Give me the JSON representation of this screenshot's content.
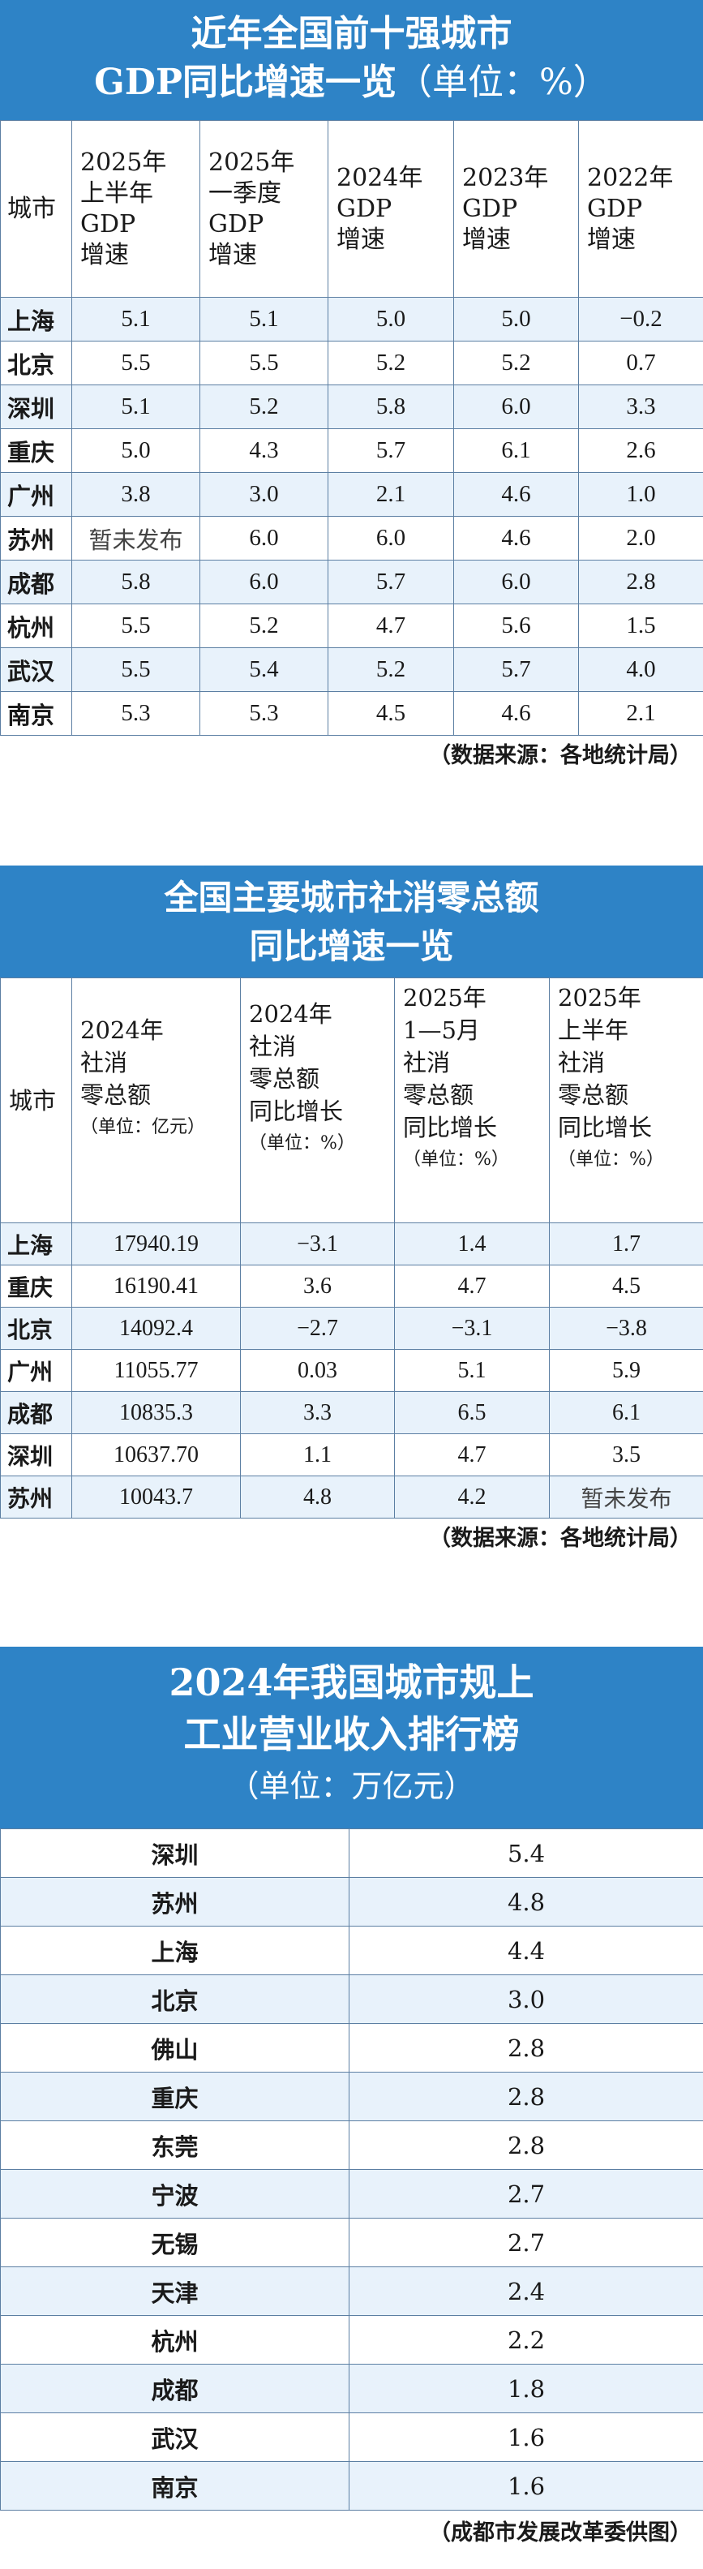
{
  "gdp": {
    "title_line1": "近年全国前十强城市",
    "title_line2": "GDP同比增速一览",
    "unit": "（单位：%）",
    "headers": {
      "city": "城市",
      "col1": [
        "2025年",
        "上半年",
        "GDP",
        "增速"
      ],
      "col2": [
        "2025年",
        "一季度",
        "GDP",
        "增速"
      ],
      "col3": [
        "2024年",
        "GDP",
        "增速"
      ],
      "col4": [
        "2023年",
        "GDP",
        "增速"
      ],
      "col5": [
        "2022年",
        "GDP",
        "增速"
      ]
    },
    "rows": [
      {
        "city": "上海",
        "v": [
          "5.1",
          "5.1",
          "5.0",
          "5.0",
          "−0.2"
        ]
      },
      {
        "city": "北京",
        "v": [
          "5.5",
          "5.5",
          "5.2",
          "5.2",
          "0.7"
        ]
      },
      {
        "city": "深圳",
        "v": [
          "5.1",
          "5.2",
          "5.8",
          "6.0",
          "3.3"
        ]
      },
      {
        "city": "重庆",
        "v": [
          "5.0",
          "4.3",
          "5.7",
          "6.1",
          "2.6"
        ]
      },
      {
        "city": "广州",
        "v": [
          "3.8",
          "3.0",
          "2.1",
          "4.6",
          "1.0"
        ]
      },
      {
        "city": "苏州",
        "v": [
          "暂未发布",
          "6.0",
          "6.0",
          "4.6",
          "2.0"
        ]
      },
      {
        "city": "成都",
        "v": [
          "5.8",
          "6.0",
          "5.7",
          "6.0",
          "2.8"
        ]
      },
      {
        "city": "杭州",
        "v": [
          "5.5",
          "5.2",
          "4.7",
          "5.6",
          "1.5"
        ]
      },
      {
        "city": "武汉",
        "v": [
          "5.5",
          "5.4",
          "5.2",
          "5.7",
          "4.0"
        ]
      },
      {
        "city": "南京",
        "v": [
          "5.3",
          "5.3",
          "4.5",
          "4.6",
          "2.1"
        ]
      }
    ],
    "source": "（数据来源：各地统计局）"
  },
  "retail": {
    "title_line1": "全国主要城市社消零总额",
    "title_line2": "同比增速一览",
    "headers": {
      "city": "城市",
      "col1": [
        "2024年",
        "社消",
        "零总额"
      ],
      "col1_unit": "（单位：亿元）",
      "col2": [
        "2024年",
        "社消",
        "零总额",
        "同比增长"
      ],
      "col2_unit": "（单位：%）",
      "col3": [
        "2025年",
        "1—5月",
        "社消",
        "零总额",
        "同比增长"
      ],
      "col3_unit": "（单位：%）",
      "col4": [
        "2025年",
        "上半年",
        "社消",
        "零总额",
        "同比增长"
      ],
      "col4_unit": "（单位：%）"
    },
    "rows": [
      {
        "city": "上海",
        "v": [
          "17940.19",
          "−3.1",
          "1.4",
          "1.7"
        ]
      },
      {
        "city": "重庆",
        "v": [
          "16190.41",
          "3.6",
          "4.7",
          "4.5"
        ]
      },
      {
        "city": "北京",
        "v": [
          "14092.4",
          "−2.7",
          "−3.1",
          "−3.8"
        ]
      },
      {
        "city": "广州",
        "v": [
          "11055.77",
          "0.03",
          "5.1",
          "5.9"
        ]
      },
      {
        "city": "成都",
        "v": [
          "10835.3",
          "3.3",
          "6.5",
          "6.1"
        ]
      },
      {
        "city": "深圳",
        "v": [
          "10637.70",
          "1.1",
          "4.7",
          "3.5"
        ]
      },
      {
        "city": "苏州",
        "v": [
          "10043.7",
          "4.8",
          "4.2",
          "暂未发布"
        ]
      }
    ],
    "source": "（数据来源：各地统计局）"
  },
  "industry": {
    "title_line1": "2024年我国城市规上",
    "title_line2": "工业营业收入排行榜",
    "unit": "（单位：万亿元）",
    "rows": [
      {
        "city": "深圳",
        "v": "5.4"
      },
      {
        "city": "苏州",
        "v": "4.8"
      },
      {
        "city": "上海",
        "v": "4.4"
      },
      {
        "city": "北京",
        "v": "3.0"
      },
      {
        "city": "佛山",
        "v": "2.8"
      },
      {
        "city": "重庆",
        "v": "2.8"
      },
      {
        "city": "东莞",
        "v": "2.8"
      },
      {
        "city": "宁波",
        "v": "2.7"
      },
      {
        "city": "无锡",
        "v": "2.7"
      },
      {
        "city": "天津",
        "v": "2.4"
      },
      {
        "city": "杭州",
        "v": "2.2"
      },
      {
        "city": "成都",
        "v": "1.8"
      },
      {
        "city": "武汉",
        "v": "1.6"
      },
      {
        "city": "南京",
        "v": "1.6"
      }
    ],
    "source": "（成都市发展改革委供图）"
  },
  "colors": {
    "title_bg": "#2e83c6",
    "row_alt": "#e8f2fb",
    "border": "#5c7fa3"
  }
}
